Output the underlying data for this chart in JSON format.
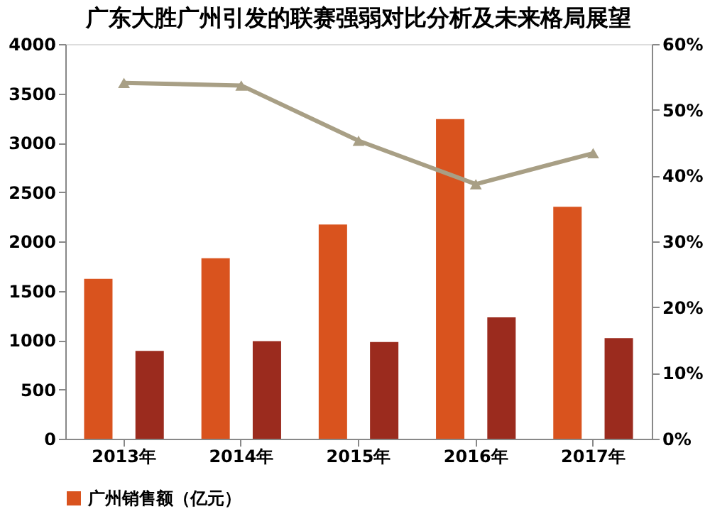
{
  "chart_data": {
    "type": "bar",
    "title": "广东大胜广州引发的联赛强弱对比分析及未来格局展望",
    "categories": [
      "2013年",
      "2014年",
      "2015年",
      "2016年",
      "2017年"
    ],
    "series": [
      {
        "name": "广州销售额（亿元）",
        "color": "#d9531e",
        "values": [
          1620,
          1830,
          2170,
          3240,
          2350
        ]
      },
      {
        "color": "#9b2b1e",
        "values": [
          890,
          990,
          980,
          1230,
          1020
        ]
      },
      {
        "type": "line",
        "axis": "y2",
        "color": "#a89f85",
        "marker": "triangle",
        "values": [
          54.1,
          53.7,
          45.3,
          38.7,
          43.4
        ]
      }
    ],
    "ylim": [
      0,
      4000
    ],
    "yticks": [
      0,
      500,
      1000,
      1500,
      2000,
      2500,
      3000,
      3500,
      4000
    ],
    "y2lim": [
      0,
      60
    ],
    "y2ticks": [
      {
        "value": 0,
        "label": "0%"
      },
      {
        "value": 10,
        "label": "10%"
      },
      {
        "value": 20,
        "label": "20%"
      },
      {
        "value": 30,
        "label": "30%"
      },
      {
        "value": 40,
        "label": "40%"
      },
      {
        "value": 50,
        "label": "50%"
      },
      {
        "value": 60,
        "label": "60%"
      }
    ],
    "legend": "bottom",
    "grid": false
  }
}
